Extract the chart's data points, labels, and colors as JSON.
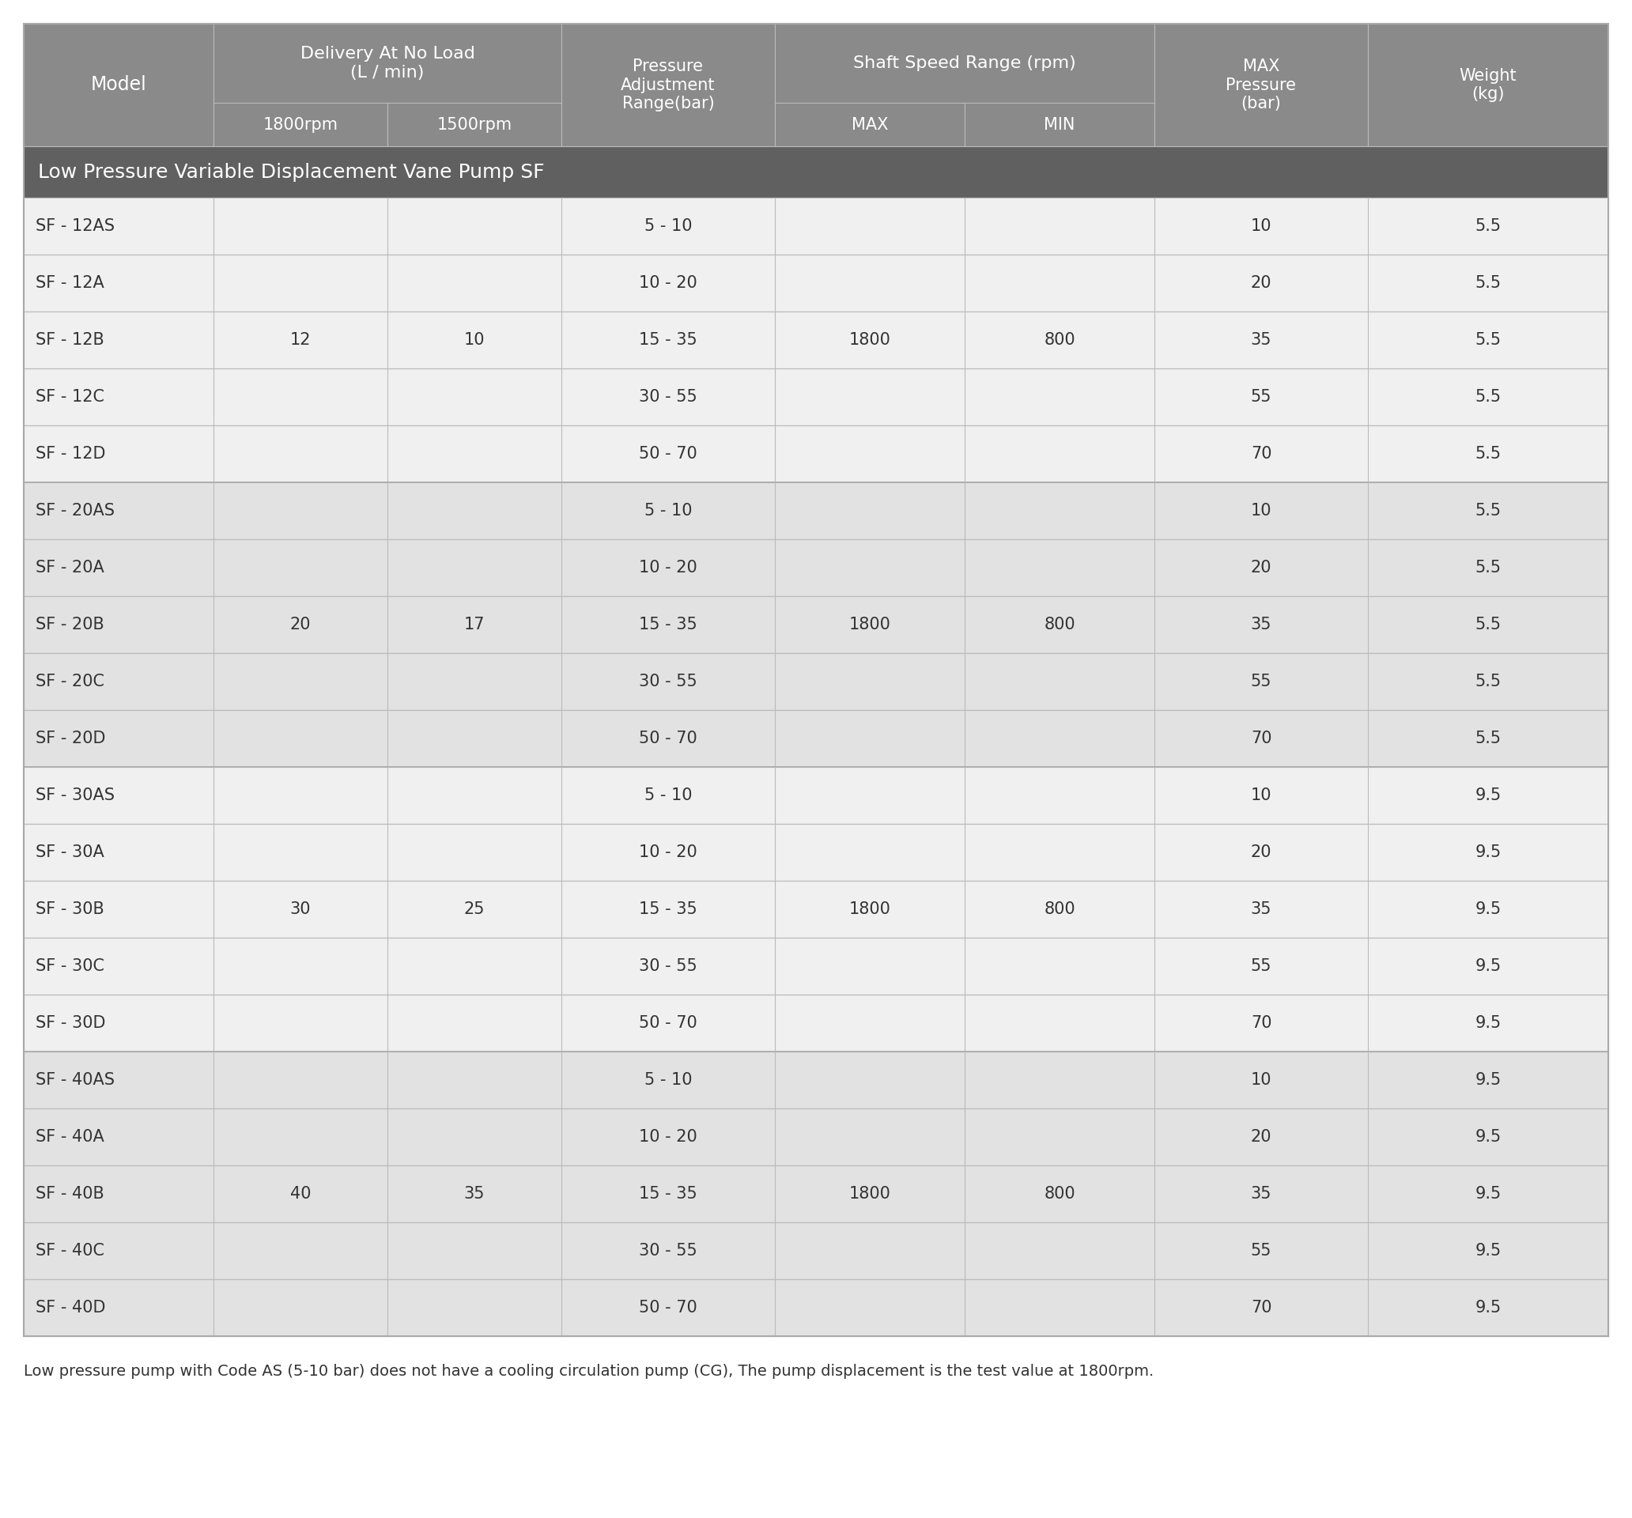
{
  "title": "Low Pressure Variable Displacement Vane Pump SF",
  "footer": "Low pressure pump with Code AS (5-10 bar) does not have a cooling circulation pump (CG), The pump displacement is the test value at 1800rpm.",
  "header_bg": "#8a8a8a",
  "section_bg": "#606060",
  "row_bg_odd": "#f0f0f0",
  "row_bg_even": "#e2e2e2",
  "header_text_color": "#ffffff",
  "section_text_color": "#ffffff",
  "cell_text_color": "#333333",
  "border_color": "#bbbbbb",
  "groups": [
    {
      "delivery_1800": "12",
      "delivery_1500": "10",
      "max_rpm": "1800",
      "min_rpm": "800",
      "rows": [
        [
          "SF - 12AS",
          "5 - 10",
          "10",
          "5.5"
        ],
        [
          "SF - 12A",
          "10 - 20",
          "20",
          "5.5"
        ],
        [
          "SF - 12B",
          "15 - 35",
          "35",
          "5.5"
        ],
        [
          "SF - 12C",
          "30 - 55",
          "55",
          "5.5"
        ],
        [
          "SF - 12D",
          "50 - 70",
          "70",
          "5.5"
        ]
      ]
    },
    {
      "delivery_1800": "20",
      "delivery_1500": "17",
      "max_rpm": "1800",
      "min_rpm": "800",
      "rows": [
        [
          "SF - 20AS",
          "5 - 10",
          "10",
          "5.5"
        ],
        [
          "SF - 20A",
          "10 - 20",
          "20",
          "5.5"
        ],
        [
          "SF - 20B",
          "15 - 35",
          "35",
          "5.5"
        ],
        [
          "SF - 20C",
          "30 - 55",
          "55",
          "5.5"
        ],
        [
          "SF - 20D",
          "50 - 70",
          "70",
          "5.5"
        ]
      ]
    },
    {
      "delivery_1800": "30",
      "delivery_1500": "25",
      "max_rpm": "1800",
      "min_rpm": "800",
      "rows": [
        [
          "SF - 30AS",
          "5 - 10",
          "10",
          "9.5"
        ],
        [
          "SF - 30A",
          "10 - 20",
          "20",
          "9.5"
        ],
        [
          "SF - 30B",
          "15 - 35",
          "35",
          "9.5"
        ],
        [
          "SF - 30C",
          "30 - 55",
          "55",
          "9.5"
        ],
        [
          "SF - 30D",
          "50 - 70",
          "70",
          "9.5"
        ]
      ]
    },
    {
      "delivery_1800": "40",
      "delivery_1500": "35",
      "max_rpm": "1800",
      "min_rpm": "800",
      "rows": [
        [
          "SF - 40AS",
          "5 - 10",
          "10",
          "9.5"
        ],
        [
          "SF - 40A",
          "10 - 20",
          "20",
          "9.5"
        ],
        [
          "SF - 40B",
          "15 - 35",
          "35",
          "9.5"
        ],
        [
          "SF - 40C",
          "30 - 55",
          "55",
          "9.5"
        ],
        [
          "SF - 40D",
          "50 - 70",
          "70",
          "9.5"
        ]
      ]
    }
  ]
}
